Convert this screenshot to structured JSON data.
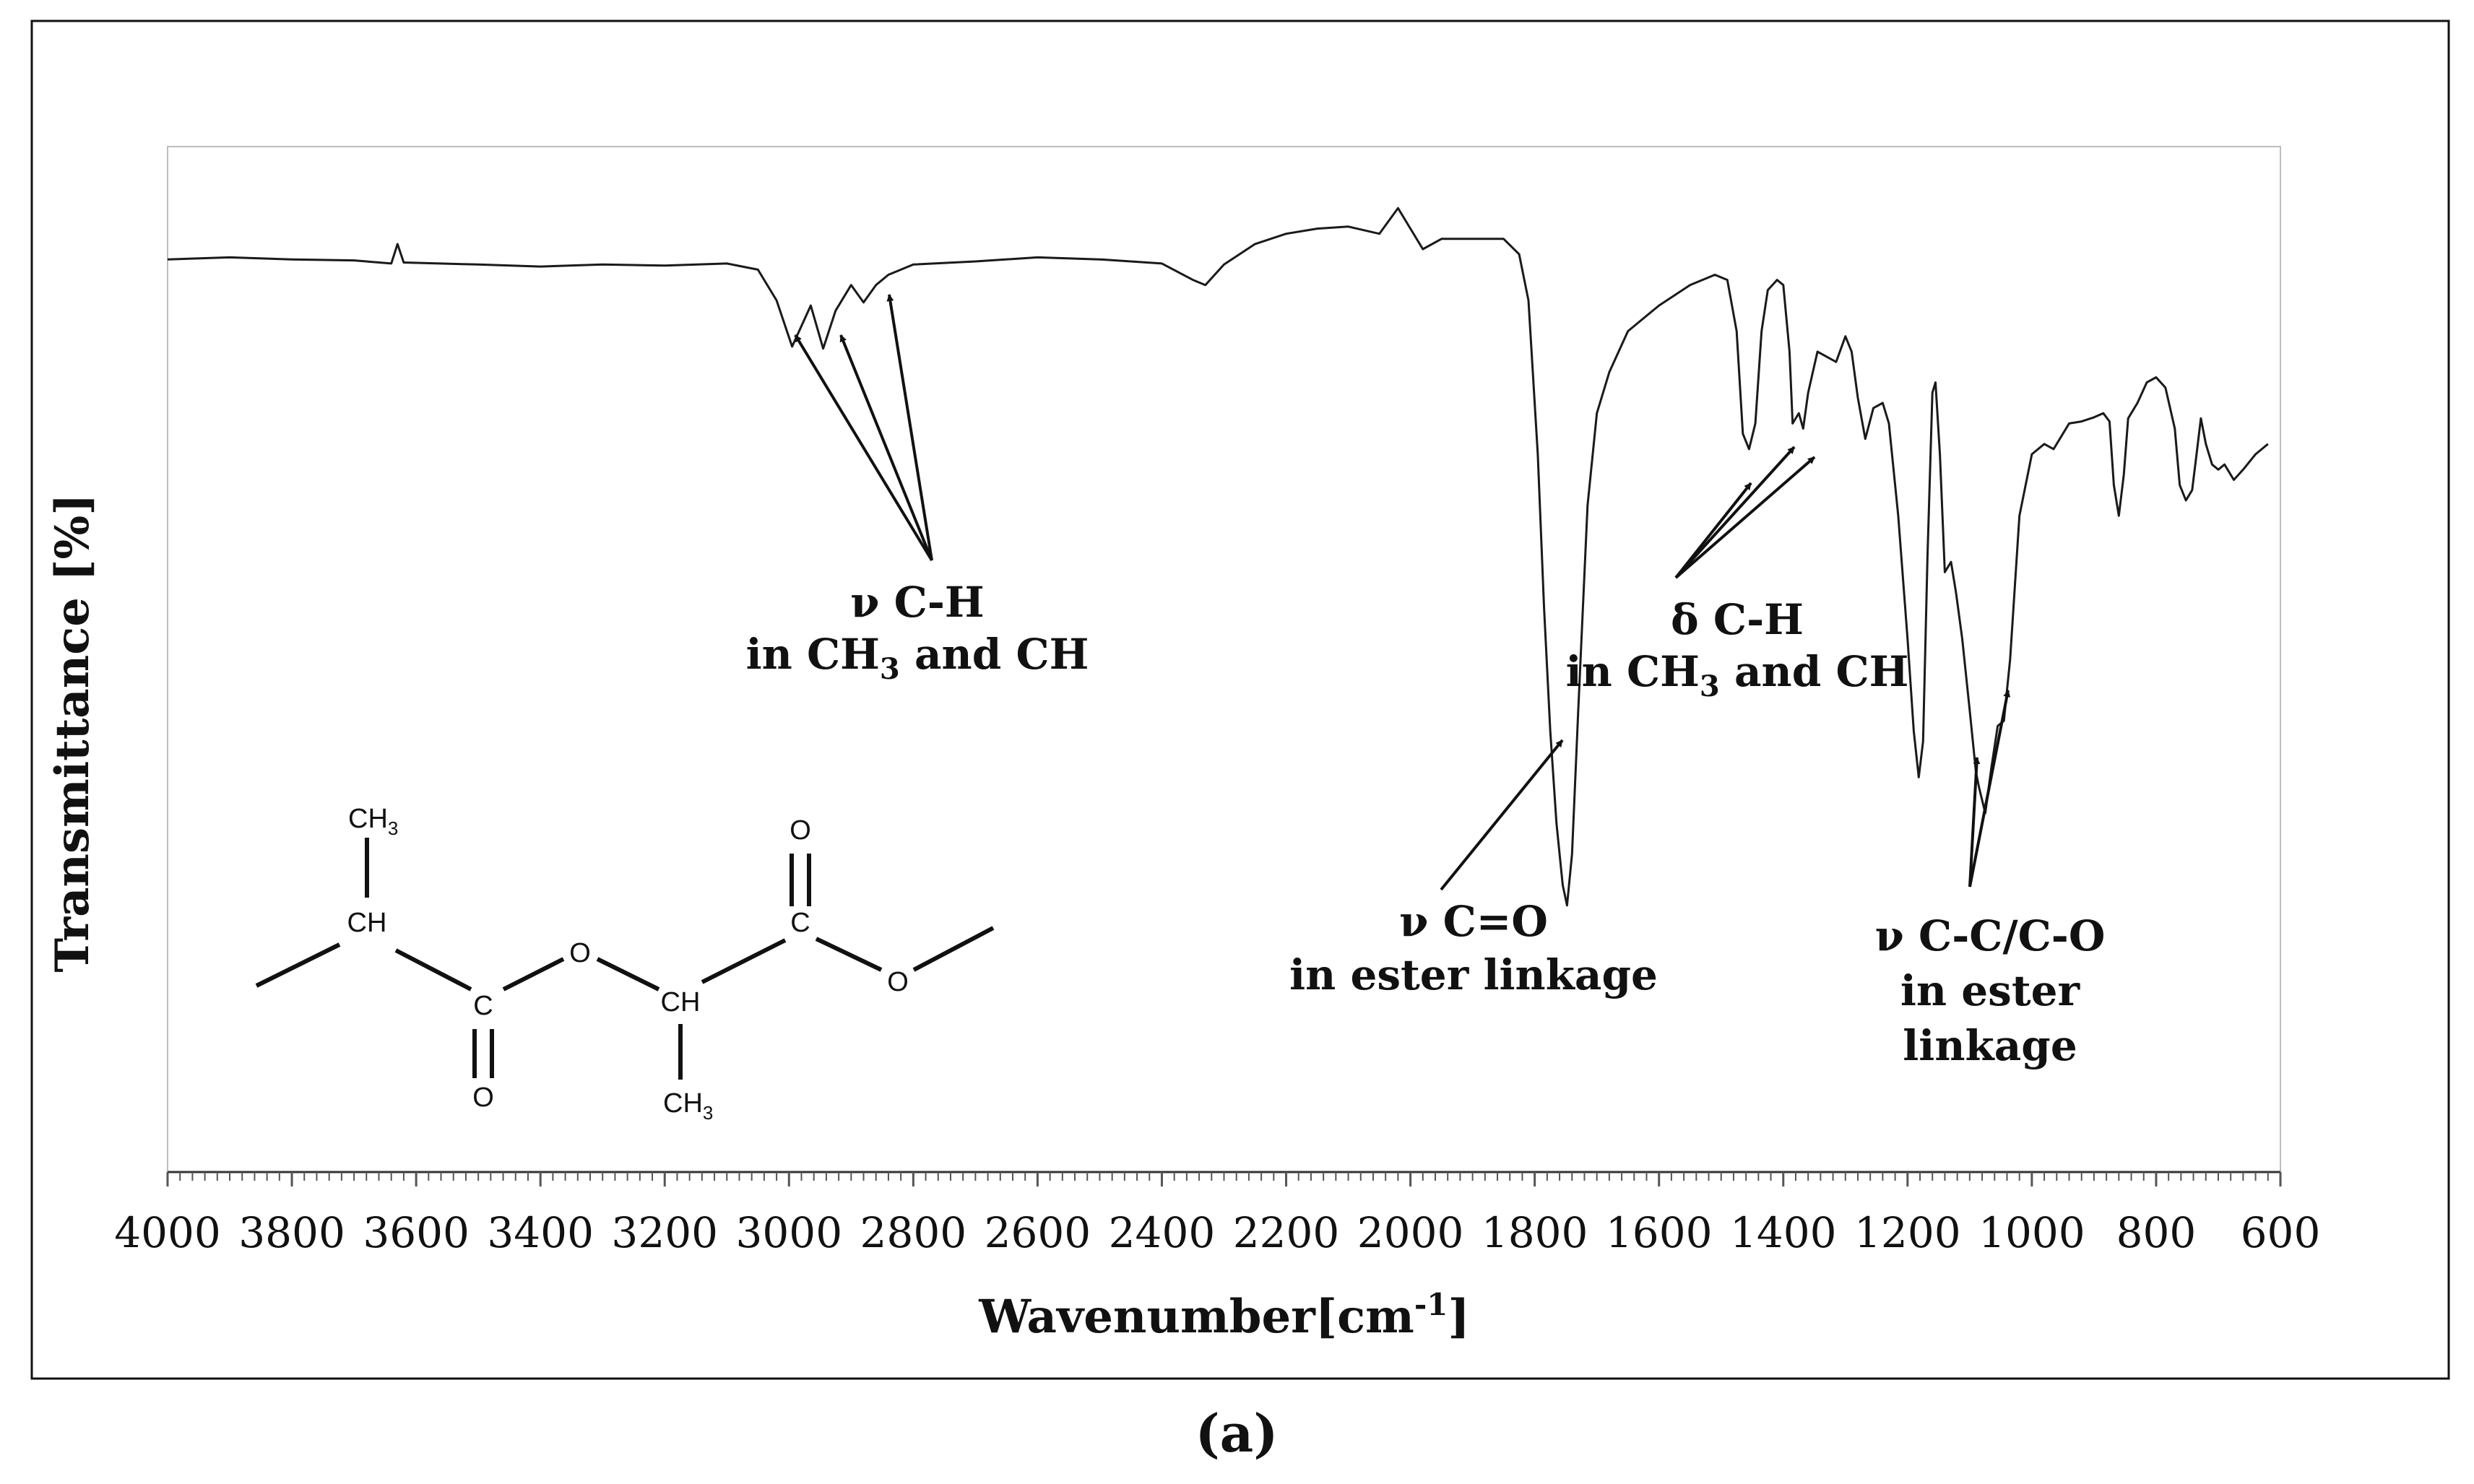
{
  "chart_data": {
    "type": "line",
    "xlabel": "Wavenumber",
    "xlabel_unit_base": "[cm",
    "xlabel_unit_sup": "-1",
    "xlabel_unit_end": "]",
    "ylabel": "Transmittance [%]",
    "xlim": [
      4000,
      600
    ],
    "ylim": [
      0,
      100
    ],
    "x_reversed": true,
    "grid": false,
    "y_ticks_shown": false,
    "tick_labels": [
      "4000",
      "3800",
      "3600",
      "3400",
      "3200",
      "3000",
      "2800",
      "2600",
      "2400",
      "2200",
      "2000",
      "1800",
      "1600",
      "1400",
      "1200",
      "1000",
      "800",
      "600"
    ],
    "series": [
      {
        "color": "#1a1a1a",
        "points": [
          [
            4000,
            89.0
          ],
          [
            3900,
            89.2
          ],
          [
            3800,
            89.0
          ],
          [
            3700,
            88.9
          ],
          [
            3640,
            88.6
          ],
          [
            3630,
            90.5
          ],
          [
            3620,
            88.7
          ],
          [
            3500,
            88.5
          ],
          [
            3400,
            88.3
          ],
          [
            3300,
            88.5
          ],
          [
            3200,
            88.4
          ],
          [
            3100,
            88.6
          ],
          [
            3050,
            88.0
          ],
          [
            3020,
            85.0
          ],
          [
            2995,
            80.5
          ],
          [
            2980,
            82.5
          ],
          [
            2965,
            84.5
          ],
          [
            2945,
            80.3
          ],
          [
            2925,
            84.0
          ],
          [
            2900,
            86.5
          ],
          [
            2880,
            84.8
          ],
          [
            2860,
            86.5
          ],
          [
            2840,
            87.5
          ],
          [
            2800,
            88.5
          ],
          [
            2700,
            88.8
          ],
          [
            2600,
            89.2
          ],
          [
            2500,
            89.0
          ],
          [
            2400,
            88.6
          ],
          [
            2350,
            87.0
          ],
          [
            2330,
            86.5
          ],
          [
            2300,
            88.5
          ],
          [
            2250,
            90.5
          ],
          [
            2200,
            91.5
          ],
          [
            2150,
            92.0
          ],
          [
            2100,
            92.2
          ],
          [
            2050,
            91.5
          ],
          [
            2020,
            94.0
          ],
          [
            2000,
            92.0
          ],
          [
            1980,
            90.0
          ],
          [
            1950,
            91.0
          ],
          [
            1900,
            91.0
          ],
          [
            1850,
            91.0
          ],
          [
            1825,
            89.5
          ],
          [
            1810,
            85.0
          ],
          [
            1795,
            70.0
          ],
          [
            1785,
            55.0
          ],
          [
            1775,
            43.0
          ],
          [
            1765,
            34.0
          ],
          [
            1755,
            28.0
          ],
          [
            1748,
            26.0
          ],
          [
            1740,
            31.0
          ],
          [
            1730,
            45.0
          ],
          [
            1715,
            65.0
          ],
          [
            1700,
            74.0
          ],
          [
            1680,
            78.0
          ],
          [
            1650,
            82.0
          ],
          [
            1600,
            84.5
          ],
          [
            1550,
            86.5
          ],
          [
            1510,
            87.5
          ],
          [
            1490,
            87.0
          ],
          [
            1475,
            82.0
          ],
          [
            1465,
            72.0
          ],
          [
            1455,
            70.5
          ],
          [
            1445,
            73.0
          ],
          [
            1435,
            82.0
          ],
          [
            1425,
            86.0
          ],
          [
            1410,
            87.0
          ],
          [
            1400,
            86.5
          ],
          [
            1390,
            80.0
          ],
          [
            1385,
            73.0
          ],
          [
            1375,
            74.0
          ],
          [
            1368,
            72.5
          ],
          [
            1360,
            76.0
          ],
          [
            1345,
            80.0
          ],
          [
            1330,
            79.5
          ],
          [
            1315,
            79.0
          ],
          [
            1300,
            81.5
          ],
          [
            1290,
            80.0
          ],
          [
            1280,
            75.5
          ],
          [
            1268,
            71.5
          ],
          [
            1255,
            74.5
          ],
          [
            1240,
            75.0
          ],
          [
            1230,
            73.0
          ],
          [
            1215,
            64.0
          ],
          [
            1200,
            52.0
          ],
          [
            1190,
            43.0
          ],
          [
            1182,
            38.5
          ],
          [
            1175,
            42.0
          ],
          [
            1168,
            60.0
          ],
          [
            1160,
            76.0
          ],
          [
            1155,
            77.0
          ],
          [
            1148,
            70.0
          ],
          [
            1140,
            58.5
          ],
          [
            1130,
            59.5
          ],
          [
            1122,
            56.5
          ],
          [
            1112,
            52.0
          ],
          [
            1100,
            45.0
          ],
          [
            1090,
            39.0
          ],
          [
            1085,
            37.5
          ],
          [
            1075,
            35.0
          ],
          [
            1065,
            39.5
          ],
          [
            1055,
            43.5
          ],
          [
            1045,
            44.0
          ],
          [
            1035,
            50.0
          ],
          [
            1020,
            64.0
          ],
          [
            1000,
            70.0
          ],
          [
            980,
            71.0
          ],
          [
            965,
            70.5
          ],
          [
            955,
            71.5
          ],
          [
            940,
            73.0
          ],
          [
            920,
            73.2
          ],
          [
            900,
            73.6
          ],
          [
            885,
            74.0
          ],
          [
            875,
            73.2
          ],
          [
            868,
            67.0
          ],
          [
            860,
            64.0
          ],
          [
            852,
            68.0
          ],
          [
            845,
            73.5
          ],
          [
            830,
            75.0
          ],
          [
            815,
            77.0
          ],
          [
            800,
            77.5
          ],
          [
            785,
            76.5
          ],
          [
            770,
            72.5
          ],
          [
            762,
            67.0
          ],
          [
            752,
            65.5
          ],
          [
            742,
            66.5
          ],
          [
            735,
            70.0
          ],
          [
            728,
            73.5
          ],
          [
            720,
            71.0
          ],
          [
            710,
            69.0
          ],
          [
            700,
            68.5
          ],
          [
            690,
            69.0
          ],
          [
            675,
            67.5
          ],
          [
            660,
            68.5
          ],
          [
            640,
            70.0
          ],
          [
            620,
            71.0
          ]
        ]
      }
    ],
    "annotations": [
      {
        "line1": "ν C-H",
        "line2_pre": "in CH",
        "line2_sub": "3",
        "line2_post": " and CH"
      },
      {
        "line1": "δ C-H",
        "line2_pre": "in CH",
        "line2_sub": "3",
        "line2_post": " and CH"
      },
      {
        "line1": "ν C=O",
        "line2": "in ester linkage"
      },
      {
        "line1": "ν C-C/C-O",
        "line2": "in ester",
        "line3": "linkage"
      }
    ],
    "panel_label": "(a)",
    "molecule_labels": [
      "CH",
      "3",
      "CH",
      "C",
      "O",
      "O",
      "CH",
      "C",
      "O",
      "O",
      "CH",
      "3"
    ]
  }
}
